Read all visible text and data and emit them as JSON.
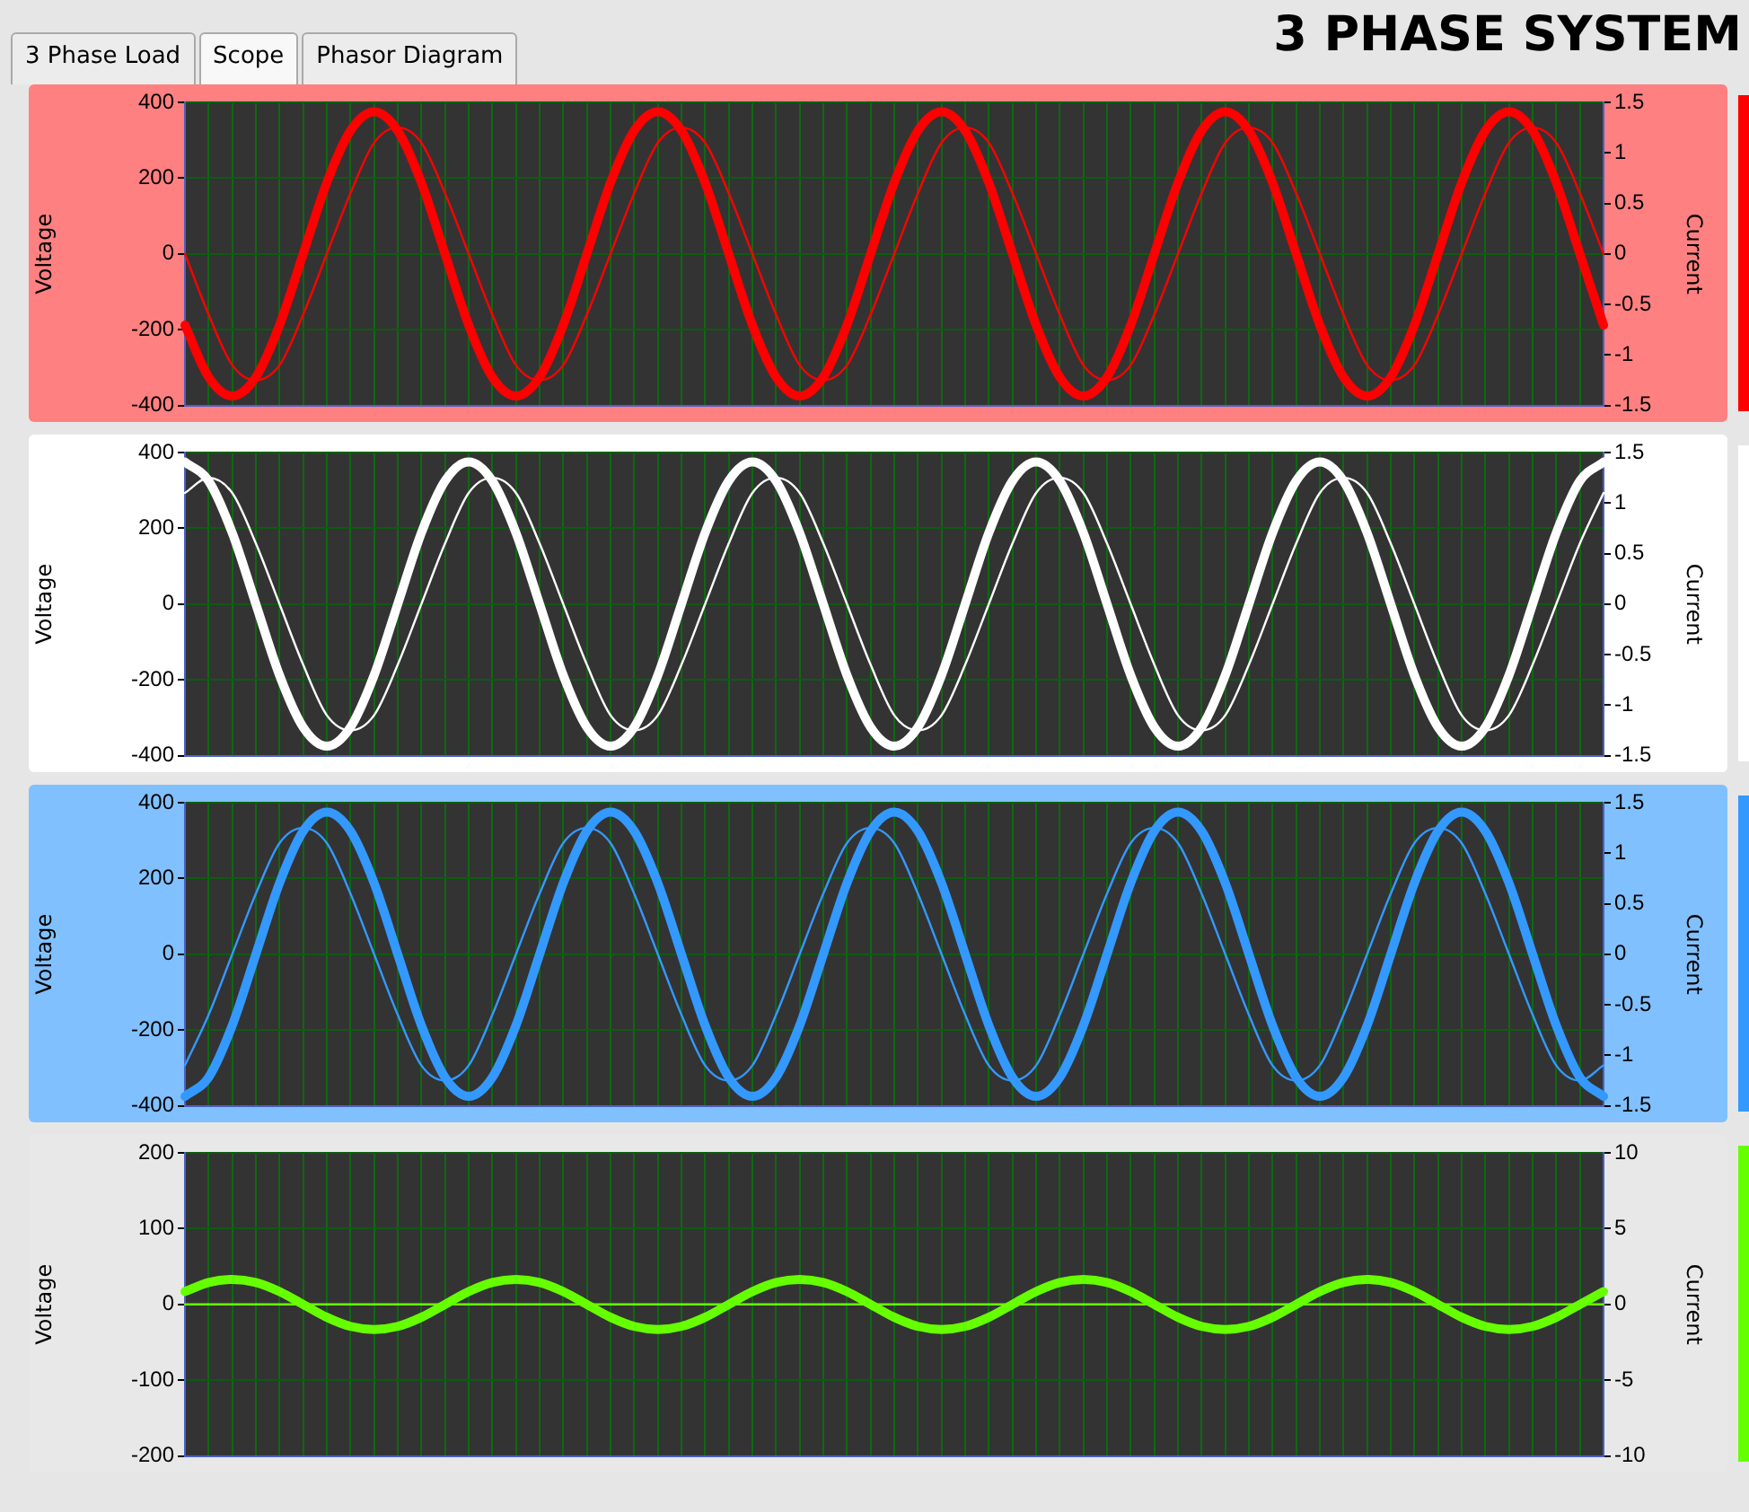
{
  "chart_data": [
    {
      "type": "line",
      "title": "3 PHASE SYSTEM",
      "annotations": [
        "3 Phase Load",
        "Scope",
        "Phasor Diagram"
      ],
      "ylabel": "Voltage",
      "y2label": "Current",
      "grid": true,
      "marker": "none",
      "categories": [
        null,
        null,
        null,
        null,
        null,
        null,
        null,
        null,
        null,
        null,
        null,
        null,
        null,
        null,
        null,
        null,
        null,
        null,
        null,
        null,
        null,
        null,
        null,
        null,
        null,
        null,
        null,
        null,
        null,
        null,
        null,
        null,
        null,
        null,
        null,
        null,
        null,
        null,
        null,
        null,
        null,
        null,
        null,
        null,
        null,
        null,
        null,
        null,
        null,
        null,
        null,
        null,
        null,
        null,
        null,
        null,
        null,
        null,
        null,
        null,
        null
      ],
      "ylim": [
        -400,
        400
      ],
      "yticks": [
        -400,
        -200,
        0,
        200,
        400
      ],
      "y2lim": [
        -1.5,
        1.5
      ],
      "y2ticks": [
        -1.5,
        -1,
        -0.5,
        0,
        0.5,
        1,
        1.5
      ],
      "series": [
        {
          "color": "#ff0000",
          "values": [
            -188,
            -325,
            -375,
            -325,
            -188,
            0,
            188,
            325,
            375,
            325,
            188,
            0,
            -188,
            -325,
            -375,
            -325,
            -188,
            0,
            188,
            325,
            375,
            325,
            188,
            0,
            -188,
            -325,
            -375,
            -325,
            -188,
            0,
            188,
            325,
            375,
            325,
            188,
            0,
            -188,
            -325,
            -375,
            -325,
            -188,
            0,
            188,
            325,
            375,
            325,
            188,
            0,
            -188,
            -325,
            -375,
            -325,
            -188,
            0,
            188,
            325,
            375,
            325,
            188,
            0,
            -188
          ]
        },
        {
          "color": "#ff0000",
          "axis": "y2",
          "values": [
            0,
            -0.6,
            -1.1,
            -1.25,
            -1.1,
            -0.6,
            0,
            0.6,
            1.1,
            1.25,
            1.1,
            0.6,
            0,
            -0.6,
            -1.1,
            -1.25,
            -1.1,
            -0.6,
            0,
            0.6,
            1.1,
            1.25,
            1.1,
            0.6,
            0,
            -0.6,
            -1.1,
            -1.25,
            -1.1,
            -0.6,
            0,
            0.6,
            1.1,
            1.25,
            1.1,
            0.6,
            0,
            -0.6,
            -1.1,
            -1.25,
            -1.1,
            -0.6,
            0,
            0.6,
            1.1,
            1.25,
            1.1,
            0.6,
            0,
            -0.6,
            -1.1,
            -1.25,
            -1.1,
            -0.6,
            0,
            0.6,
            1.1,
            1.25,
            1.1,
            0.6,
            0
          ]
        }
      ]
    },
    {
      "type": "line",
      "ylabel": "Voltage",
      "y2label": "Current",
      "grid": true,
      "marker": "none",
      "categories": [
        null,
        null,
        null,
        null,
        null,
        null,
        null,
        null,
        null,
        null,
        null,
        null,
        null,
        null,
        null,
        null,
        null,
        null,
        null,
        null,
        null,
        null,
        null,
        null,
        null,
        null,
        null,
        null,
        null,
        null,
        null,
        null,
        null,
        null,
        null,
        null,
        null,
        null,
        null,
        null,
        null,
        null,
        null,
        null,
        null,
        null,
        null,
        null,
        null,
        null,
        null,
        null,
        null,
        null,
        null,
        null,
        null,
        null,
        null,
        null,
        null
      ],
      "ylim": [
        -400,
        400
      ],
      "yticks": [
        -400,
        -200,
        0,
        200,
        400
      ],
      "y2lim": [
        -1.5,
        1.5
      ],
      "y2ticks": [
        -1.5,
        -1,
        -0.5,
        0,
        0.5,
        1,
        1.5
      ],
      "series": [
        {
          "color": "#ffffff",
          "values": [
            375,
            325,
            188,
            0,
            -188,
            -325,
            -375,
            -325,
            -188,
            0,
            188,
            325,
            375,
            325,
            188,
            0,
            -188,
            -325,
            -375,
            -325,
            -188,
            0,
            188,
            325,
            375,
            325,
            188,
            0,
            -188,
            -325,
            -375,
            -325,
            -188,
            0,
            188,
            325,
            375,
            325,
            188,
            0,
            -188,
            -325,
            -375,
            -325,
            -188,
            0,
            188,
            325,
            375,
            325,
            188,
            0,
            -188,
            -325,
            -375,
            -325,
            -188,
            0,
            188,
            325,
            375
          ]
        },
        {
          "color": "#ffffff",
          "axis": "y2",
          "values": [
            1.1,
            1.25,
            1.1,
            0.6,
            0,
            -0.6,
            -1.1,
            -1.25,
            -1.1,
            -0.6,
            0,
            0.6,
            1.1,
            1.25,
            1.1,
            0.6,
            0,
            -0.6,
            -1.1,
            -1.25,
            -1.1,
            -0.6,
            0,
            0.6,
            1.1,
            1.25,
            1.1,
            0.6,
            0,
            -0.6,
            -1.1,
            -1.25,
            -1.1,
            -0.6,
            0,
            0.6,
            1.1,
            1.25,
            1.1,
            0.6,
            0,
            -0.6,
            -1.1,
            -1.25,
            -1.1,
            -0.6,
            0,
            0.6,
            1.1,
            1.25,
            1.1,
            0.6,
            0,
            -0.6,
            -1.1,
            -1.25,
            -1.1,
            -0.6,
            0,
            0.6,
            1.1
          ]
        }
      ]
    },
    {
      "type": "line",
      "ylabel": "Voltage",
      "y2label": "Current",
      "grid": true,
      "marker": "none",
      "categories": [
        null,
        null,
        null,
        null,
        null,
        null,
        null,
        null,
        null,
        null,
        null,
        null,
        null,
        null,
        null,
        null,
        null,
        null,
        null,
        null,
        null,
        null,
        null,
        null,
        null,
        null,
        null,
        null,
        null,
        null,
        null,
        null,
        null,
        null,
        null,
        null,
        null,
        null,
        null,
        null,
        null,
        null,
        null,
        null,
        null,
        null,
        null,
        null,
        null,
        null,
        null,
        null,
        null,
        null,
        null,
        null,
        null,
        null,
        null,
        null,
        null
      ],
      "ylim": [
        -400,
        400
      ],
      "yticks": [
        -400,
        -200,
        0,
        200,
        400
      ],
      "y2lim": [
        -1.5,
        1.5
      ],
      "y2ticks": [
        -1.5,
        -1,
        -0.5,
        0,
        0.5,
        1,
        1.5
      ],
      "series": [
        {
          "color": "#3399ff",
          "values": [
            -375,
            -325,
            -188,
            0,
            188,
            325,
            375,
            325,
            188,
            0,
            -188,
            -325,
            -375,
            -325,
            -188,
            0,
            188,
            325,
            375,
            325,
            188,
            0,
            -188,
            -325,
            -375,
            -325,
            -188,
            0,
            188,
            325,
            375,
            325,
            188,
            0,
            -188,
            -325,
            -375,
            -325,
            -188,
            0,
            188,
            325,
            375,
            325,
            188,
            0,
            -188,
            -325,
            -375,
            -325,
            -188,
            0,
            188,
            325,
            375,
            325,
            188,
            0,
            -188,
            -325,
            -375
          ]
        },
        {
          "color": "#3399ff",
          "axis": "y2",
          "values": [
            -1.1,
            -0.6,
            0,
            0.6,
            1.1,
            1.25,
            1.1,
            0.6,
            0,
            -0.6,
            -1.1,
            -1.25,
            -1.1,
            -0.6,
            0,
            0.6,
            1.1,
            1.25,
            1.1,
            0.6,
            0,
            -0.6,
            -1.1,
            -1.25,
            -1.1,
            -0.6,
            0,
            0.6,
            1.1,
            1.25,
            1.1,
            0.6,
            0,
            -0.6,
            -1.1,
            -1.25,
            -1.1,
            -0.6,
            0,
            0.6,
            1.1,
            1.25,
            1.1,
            0.6,
            0,
            -0.6,
            -1.1,
            -1.25,
            -1.1,
            -0.6,
            0,
            0.6,
            1.1,
            1.25,
            1.1,
            0.6,
            0,
            -0.6,
            -1.1,
            -1.25,
            -1.1
          ]
        }
      ]
    },
    {
      "type": "line",
      "ylabel": "Voltage",
      "y2label": "Current",
      "grid": true,
      "marker": "none",
      "categories": [
        null,
        null,
        null,
        null,
        null,
        null,
        null,
        null,
        null,
        null,
        null,
        null,
        null,
        null,
        null,
        null,
        null,
        null,
        null,
        null,
        null,
        null,
        null,
        null,
        null,
        null,
        null,
        null,
        null,
        null,
        null,
        null,
        null,
        null,
        null,
        null,
        null,
        null,
        null,
        null,
        null,
        null,
        null,
        null,
        null,
        null,
        null,
        null,
        null,
        null,
        null,
        null,
        null,
        null,
        null,
        null,
        null,
        null,
        null,
        null,
        null
      ],
      "ylim": [
        -200,
        200
      ],
      "yticks": [
        -200,
        -100,
        0,
        100,
        200
      ],
      "y2lim": [
        -10,
        10
      ],
      "y2ticks": [
        -10,
        -5,
        0,
        5,
        10
      ],
      "series": [
        {
          "color": "#66ff00",
          "values": [
            17,
            29,
            33,
            29,
            17,
            0,
            -17,
            -29,
            -33,
            -29,
            -17,
            0,
            17,
            29,
            33,
            29,
            17,
            0,
            -17,
            -29,
            -33,
            -29,
            -17,
            0,
            17,
            29,
            33,
            29,
            17,
            0,
            -17,
            -29,
            -33,
            -29,
            -17,
            0,
            17,
            29,
            33,
            29,
            17,
            0,
            -17,
            -29,
            -33,
            -29,
            -17,
            0,
            17,
            29,
            33,
            29,
            17,
            0,
            -17,
            -29,
            -33,
            -29,
            -17,
            0,
            17
          ]
        },
        {
          "color": "#66ff00",
          "axis": "y2",
          "values": [
            0,
            0,
            0,
            0,
            0,
            0,
            0,
            0,
            0,
            0,
            0,
            0,
            0,
            0,
            0,
            0,
            0,
            0,
            0,
            0,
            0,
            0,
            0,
            0,
            0,
            0,
            0,
            0,
            0,
            0,
            0,
            0,
            0,
            0,
            0,
            0,
            0,
            0,
            0,
            0,
            0,
            0,
            0,
            0,
            0,
            0,
            0,
            0,
            0,
            0,
            0,
            0,
            0,
            0,
            0,
            0,
            0,
            0,
            0,
            0,
            0
          ]
        }
      ]
    }
  ]
}
